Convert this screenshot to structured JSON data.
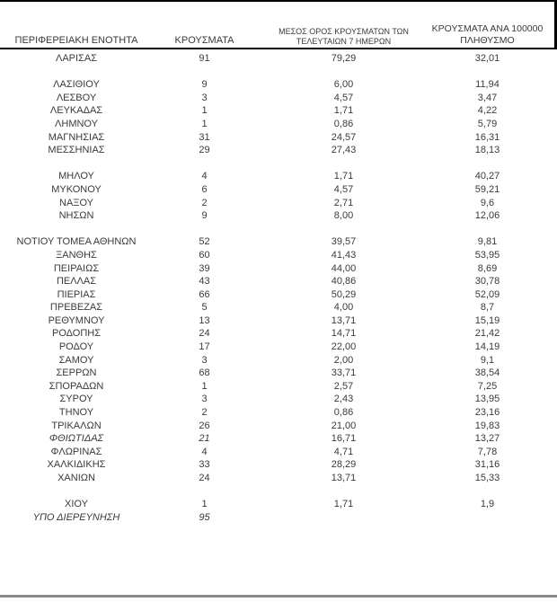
{
  "page": {
    "background": "#ffffff",
    "text_color": "#3a3a3a",
    "frame_color": "#000000",
    "bottom_rule_color": "#8a8a8a"
  },
  "table": {
    "columns": [
      {
        "label": "ΠΕΡΙΦΕΡΕΙΑΚΗ ΕΝΟΤΗΤΑ"
      },
      {
        "label": "ΚΡΟΥΣΜΑΤΑ"
      },
      {
        "line1": "ΜΕΣΟΣ ΟΡΟΣ ΚΡΟΥΣΜΑΤΩΝ ΤΩΝ",
        "line2": "ΤΕΛΕΥΤΑΙΩΝ 7 ΗΜΕΡΩΝ"
      },
      {
        "line1": "ΚΡΟΥΣΜΑΤΑ ΑΝΑ 100000",
        "line2": "ΠΛΗΘΥΣΜΟ"
      }
    ],
    "rows": [
      {
        "region": "ΛΑΡΙΣΑΣ",
        "cases": "91",
        "avg7": "79,29",
        "per100k": "32,01"
      },
      {
        "blank": true
      },
      {
        "region": "ΛΑΣΙΘΙΟΥ",
        "cases": "9",
        "avg7": "6,00",
        "per100k": "11,94"
      },
      {
        "region": "ΛΕΣΒΟΥ",
        "cases": "3",
        "avg7": "4,57",
        "per100k": "3,47"
      },
      {
        "region": "ΛΕΥΚΑΔΑΣ",
        "cases": "1",
        "avg7": "1,71",
        "per100k": "4,22"
      },
      {
        "region": "ΛΗΜΝΟΥ",
        "cases": "1",
        "avg7": "0,86",
        "per100k": "5,79"
      },
      {
        "region": "ΜΑΓΝΗΣΙΑΣ",
        "cases": "31",
        "avg7": "24,57",
        "per100k": "16,31"
      },
      {
        "region": "ΜΕΣΣΗΝΙΑΣ",
        "cases": "29",
        "avg7": "27,43",
        "per100k": "18,13"
      },
      {
        "blank": true
      },
      {
        "region": "ΜΗΛΟΥ",
        "cases": "4",
        "avg7": "1,71",
        "per100k": "40,27"
      },
      {
        "region": "ΜΥΚΟΝΟΥ",
        "cases": "6",
        "avg7": "4,57",
        "per100k": "59,21"
      },
      {
        "region": "ΝΑΞΟΥ",
        "cases": "2",
        "avg7": "2,71",
        "per100k": "9,6"
      },
      {
        "region": "ΝΗΣΩΝ",
        "cases": "9",
        "avg7": "8,00",
        "per100k": "12,06"
      },
      {
        "blank": true
      },
      {
        "region": "ΝΟΤΙΟΥ ΤΟΜΕΑ ΑΘΗΝΩΝ",
        "cases": "52",
        "avg7": "39,57",
        "per100k": "9,81"
      },
      {
        "region": "ΞΑΝΘΗΣ",
        "cases": "60",
        "avg7": "41,43",
        "per100k": "53,95"
      },
      {
        "region": "ΠΕΙΡΑΙΩΣ",
        "cases": "39",
        "avg7": "44,00",
        "per100k": "8,69"
      },
      {
        "region": "ΠΕΛΛΑΣ",
        "cases": "43",
        "avg7": "40,86",
        "per100k": "30,78"
      },
      {
        "region": "ΠΙΕΡΙΑΣ",
        "cases": "66",
        "avg7": "50,29",
        "per100k": "52,09"
      },
      {
        "region": "ΠΡΕΒΕΖΑΣ",
        "cases": "5",
        "avg7": "4,00",
        "per100k": "8,7"
      },
      {
        "region": "ΡΕΘΥΜΝΟΥ",
        "cases": "13",
        "avg7": "13,71",
        "per100k": "15,19"
      },
      {
        "region": "ΡΟΔΟΠΗΣ",
        "cases": "24",
        "avg7": "14,71",
        "per100k": "21,42"
      },
      {
        "region": "ΡΟΔΟΥ",
        "cases": "17",
        "avg7": "22,00",
        "per100k": "14,19"
      },
      {
        "region": "ΣΑΜΟΥ",
        "cases": "3",
        "avg7": "2,00",
        "per100k": "9,1"
      },
      {
        "region": "ΣΕΡΡΩΝ",
        "cases": "68",
        "avg7": "33,71",
        "per100k": "38,54"
      },
      {
        "region": "ΣΠΟΡΑΔΩΝ",
        "cases": "1",
        "avg7": "2,57",
        "per100k": "7,25"
      },
      {
        "region": "ΣΥΡΟΥ",
        "cases": "3",
        "avg7": "2,43",
        "per100k": "13,95"
      },
      {
        "region": "ΤΗΝΟΥ",
        "cases": "2",
        "avg7": "0,86",
        "per100k": "23,16"
      },
      {
        "region": "ΤΡΙΚΑΛΩΝ",
        "cases": "26",
        "avg7": "21,00",
        "per100k": "19,83"
      },
      {
        "region": "ΦΘΙΩΤΙΔΑΣ",
        "cases": "21",
        "avg7": "16,71",
        "per100k": "13,27",
        "italic": true
      },
      {
        "region": "ΦΛΩΡΙΝΑΣ",
        "cases": "4",
        "avg7": "4,71",
        "per100k": "7,78"
      },
      {
        "region": "ΧΑΛΚΙΔΙΚΗΣ",
        "cases": "33",
        "avg7": "28,29",
        "per100k": "31,16"
      },
      {
        "region": "ΧΑΝΙΩΝ",
        "cases": "24",
        "avg7": "13,71",
        "per100k": "15,33"
      },
      {
        "blank": true
      },
      {
        "region": "ΧΙΟΥ",
        "cases": "1",
        "avg7": "1,71",
        "per100k": "1,9"
      },
      {
        "region": "ΥΠΟ ΔΙΕΡΕΥΝΗΣΗ",
        "cases": "95",
        "avg7": "",
        "per100k": "",
        "italic": true
      }
    ]
  }
}
